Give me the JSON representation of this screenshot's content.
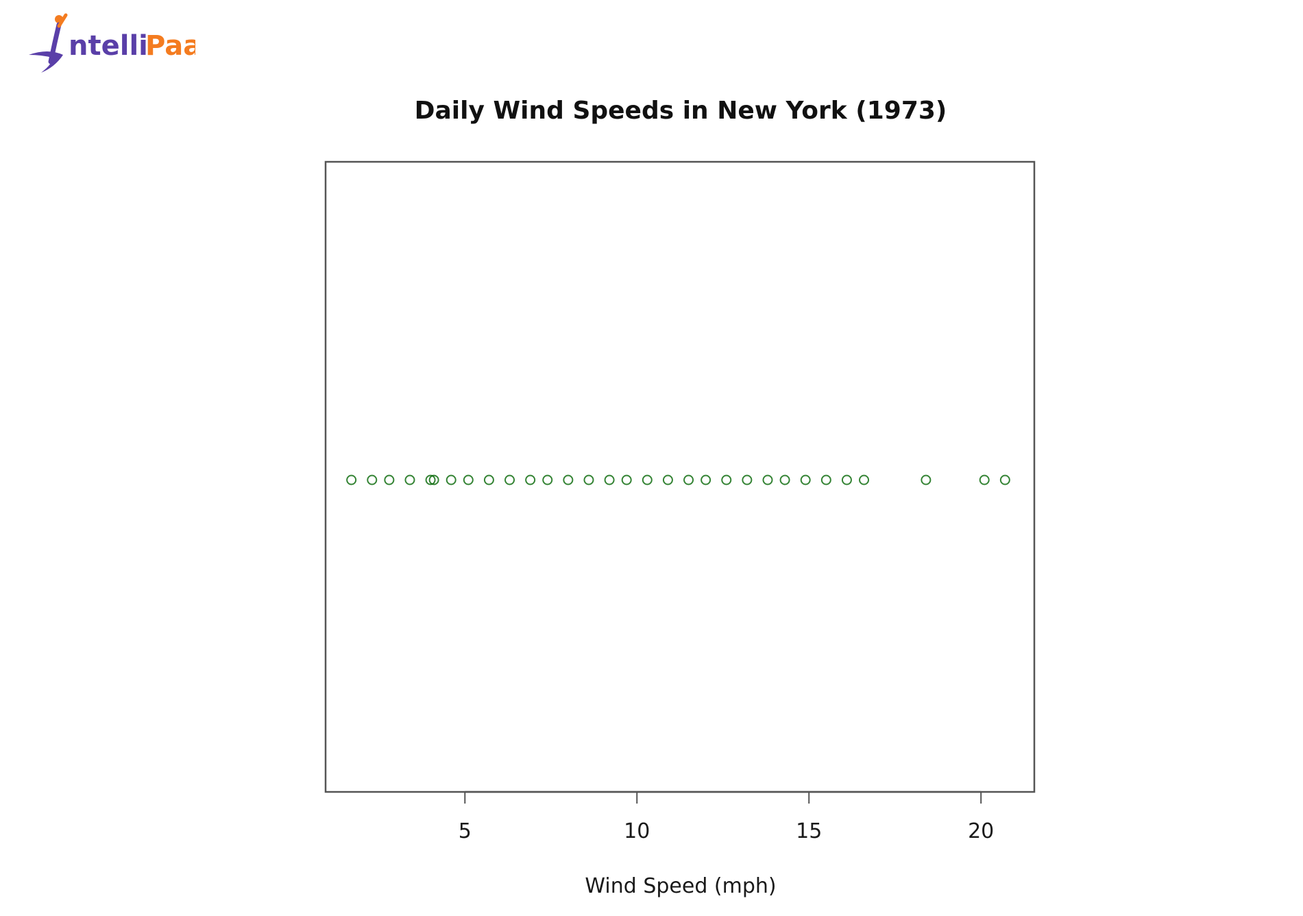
{
  "logo": {
    "text_part1": "ntelli",
    "text_part2": "Paat",
    "color_purple": "#5a3fa8",
    "color_orange": "#f47c20"
  },
  "chart_data": {
    "type": "scatter",
    "title": "Daily Wind Speeds in New York (1973)",
    "xlabel": "Wind Speed (mph)",
    "ylabel": "",
    "xlim": [
      0.95,
      21.55
    ],
    "xticks": [
      5,
      10,
      15,
      20
    ],
    "y_constant": 1,
    "marker": "open-circle",
    "color": "#006400",
    "x": [
      1.7,
      2.3,
      2.8,
      3.4,
      4.0,
      4.1,
      4.6,
      5.1,
      5.7,
      6.3,
      6.9,
      7.4,
      8.0,
      8.6,
      9.2,
      9.7,
      10.3,
      10.9,
      11.5,
      12.0,
      12.6,
      13.2,
      13.8,
      14.3,
      14.9,
      15.5,
      16.1,
      16.6,
      18.4,
      20.1,
      20.7
    ]
  }
}
